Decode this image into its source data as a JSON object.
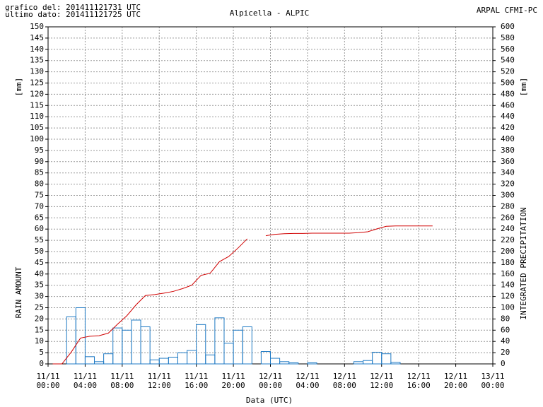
{
  "chart_data": {
    "type": "bar_line",
    "title": "Alpicella - ALPIC",
    "annotations": [
      "grafico del: 201411121731 UTC",
      "ultimo dato: 201411121725 UTC",
      "ARPAL CFMI-PC"
    ],
    "ylabel": "RAIN AMOUNT",
    "y_unit": "[mm]",
    "y2label": "INTEGRATED PRECIPITATION",
    "y2_unit": "[mm]",
    "xlabel": "Data (UTC)",
    "grid": true,
    "xlim": [
      0,
      48
    ],
    "xticks": [
      {
        "value": 0,
        "label": "11/11 00:00"
      },
      {
        "value": 4,
        "label": "11/11 04:00"
      },
      {
        "value": 8,
        "label": "11/11 08:00"
      },
      {
        "value": 12,
        "label": "11/11 12:00"
      },
      {
        "value": 16,
        "label": "11/11 16:00"
      },
      {
        "value": 20,
        "label": "11/11 20:00"
      },
      {
        "value": 24,
        "label": "12/11 00:00"
      },
      {
        "value": 28,
        "label": "12/11 04:00"
      },
      {
        "value": 32,
        "label": "12/11 08:00"
      },
      {
        "value": 36,
        "label": "12/11 12:00"
      },
      {
        "value": 40,
        "label": "12/11 16:00"
      },
      {
        "value": 44,
        "label": "12/11 20:00"
      },
      {
        "value": 48,
        "label": "13/11 00:00"
      }
    ],
    "ylim": [
      0,
      150
    ],
    "yticks": [
      0,
      5,
      10,
      15,
      20,
      25,
      30,
      35,
      40,
      45,
      50,
      55,
      60,
      65,
      70,
      75,
      80,
      85,
      90,
      95,
      100,
      105,
      110,
      115,
      120,
      125,
      130,
      135,
      140,
      145,
      150
    ],
    "y2lim": [
      0,
      600
    ],
    "y2ticks": [
      0,
      20,
      40,
      60,
      80,
      100,
      120,
      140,
      160,
      180,
      200,
      220,
      240,
      260,
      280,
      300,
      320,
      340,
      360,
      380,
      400,
      420,
      440,
      460,
      480,
      500,
      520,
      540,
      560,
      580,
      600
    ],
    "series": [
      {
        "name": "RAIN AMOUNT",
        "kind": "bar",
        "color": "#1f7ac4",
        "x": [
          0,
          1,
          2,
          3,
          4,
          5,
          6,
          7,
          8,
          9,
          10,
          11,
          12,
          13,
          14,
          15,
          16,
          17,
          18,
          19,
          20,
          21,
          22,
          23,
          24,
          25,
          26,
          27,
          28,
          29,
          30,
          31,
          32,
          33,
          34,
          35,
          36,
          37,
          38,
          39,
          40,
          41
        ],
        "values": [
          0,
          0,
          21,
          25,
          3.2,
          1,
          4.5,
          16,
          15,
          19.5,
          16.5,
          1.8,
          2.5,
          3,
          5,
          6,
          17.5,
          4,
          20.5,
          9.2,
          15,
          16.5,
          null,
          5.5,
          2.5,
          1,
          0.5,
          0,
          0.5,
          0,
          0,
          0,
          0,
          1,
          1.5,
          5.2,
          4.5,
          0.7,
          0,
          0,
          0,
          0
        ]
      },
      {
        "name": "INTEGRATED PRECIPITATION",
        "kind": "line",
        "color": "#d00000",
        "axis": "y2",
        "x": [
          0.5,
          1.5,
          2.5,
          3.5,
          4.5,
          5.5,
          6.5,
          7.5,
          8.5,
          9.5,
          10.5,
          11.5,
          12.5,
          13.5,
          14.5,
          15.5,
          16.5,
          17.5,
          18.5,
          19.5,
          20.5,
          21.5,
          22.5,
          23.5,
          24.5,
          25.5,
          26.5,
          27.5,
          28.5,
          29.5,
          30.5,
          31.5,
          32.5,
          33.5,
          34.5,
          35.5,
          36.5,
          37.5,
          38.5,
          39.5,
          40.5,
          41.5
        ],
        "values": [
          0,
          0,
          21,
          46,
          49.2,
          50.2,
          54.7,
          70.7,
          85.7,
          105.2,
          121.7,
          123.5,
          126,
          129,
          134,
          140,
          157.5,
          161.5,
          182,
          191.2,
          206.2,
          222.7,
          null,
          228.2,
          230.7,
          231.7,
          232.2,
          232.2,
          232.7,
          232.7,
          232.7,
          232.7,
          232.7,
          233.7,
          235.2,
          240.4,
          244.9,
          245.6,
          245.6,
          245.6,
          245.6,
          245.6
        ]
      }
    ]
  }
}
